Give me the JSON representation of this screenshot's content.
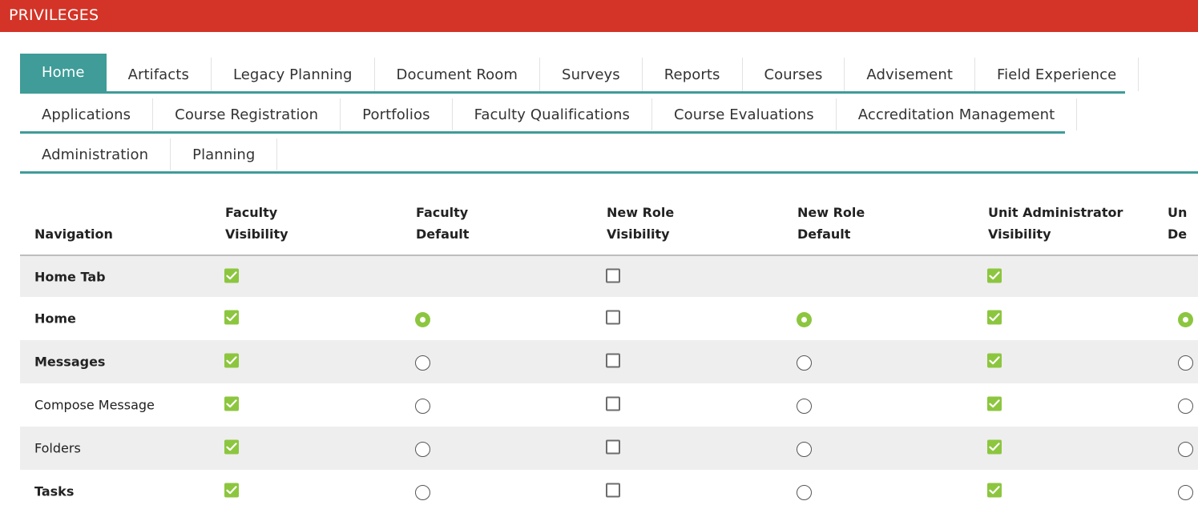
{
  "header": {
    "title": "PRIVILEGES"
  },
  "tabs": {
    "row1": [
      "Home",
      "Artifacts",
      "Legacy Planning",
      "Document Room",
      "Surveys",
      "Reports",
      "Courses",
      "Advisement",
      "Field Experience"
    ],
    "row2": [
      "Applications",
      "Course Registration",
      "Portfolios",
      "Faculty Qualifications",
      "Course Evaluations",
      "Accreditation Management"
    ],
    "row3": [
      "Administration",
      "Planning"
    ],
    "active": "Home"
  },
  "table": {
    "columns": [
      {
        "line1": "",
        "line2": "Navigation"
      },
      {
        "line1": "Faculty",
        "line2": "Visibility"
      },
      {
        "line1": "Faculty",
        "line2": "Default"
      },
      {
        "line1": "New Role",
        "line2": "Visibility"
      },
      {
        "line1": "New Role",
        "line2": "Default"
      },
      {
        "line1": "Unit Administrator",
        "line2": "Visibility"
      },
      {
        "line1": "Un",
        "line2": "De"
      }
    ],
    "rows": [
      {
        "label": "Home Tab",
        "bold": true,
        "faculty_visibility": true,
        "faculty_default": null,
        "newrole_visibility": false,
        "newrole_default": null,
        "unitadmin_visibility": true,
        "unitadmin_default": null
      },
      {
        "label": "Home",
        "bold": true,
        "faculty_visibility": true,
        "faculty_default": true,
        "newrole_visibility": false,
        "newrole_default": true,
        "unitadmin_visibility": true,
        "unitadmin_default": true
      },
      {
        "label": "Messages",
        "bold": true,
        "faculty_visibility": true,
        "faculty_default": false,
        "newrole_visibility": false,
        "newrole_default": false,
        "unitadmin_visibility": true,
        "unitadmin_default": false
      },
      {
        "label": "Compose Message",
        "bold": false,
        "faculty_visibility": true,
        "faculty_default": false,
        "newrole_visibility": false,
        "newrole_default": false,
        "unitadmin_visibility": true,
        "unitadmin_default": false
      },
      {
        "label": "Folders",
        "bold": false,
        "faculty_visibility": true,
        "faculty_default": false,
        "newrole_visibility": false,
        "newrole_default": false,
        "unitadmin_visibility": true,
        "unitadmin_default": false
      },
      {
        "label": "Tasks",
        "bold": true,
        "faculty_visibility": true,
        "faculty_default": false,
        "newrole_visibility": false,
        "newrole_default": false,
        "unitadmin_visibility": true,
        "unitadmin_default": false
      }
    ]
  },
  "colors": {
    "header_bg": "#d33427",
    "accent_teal": "#3f9c98",
    "check_green": "#8cc63f",
    "row_shade": "#eeeeee"
  }
}
